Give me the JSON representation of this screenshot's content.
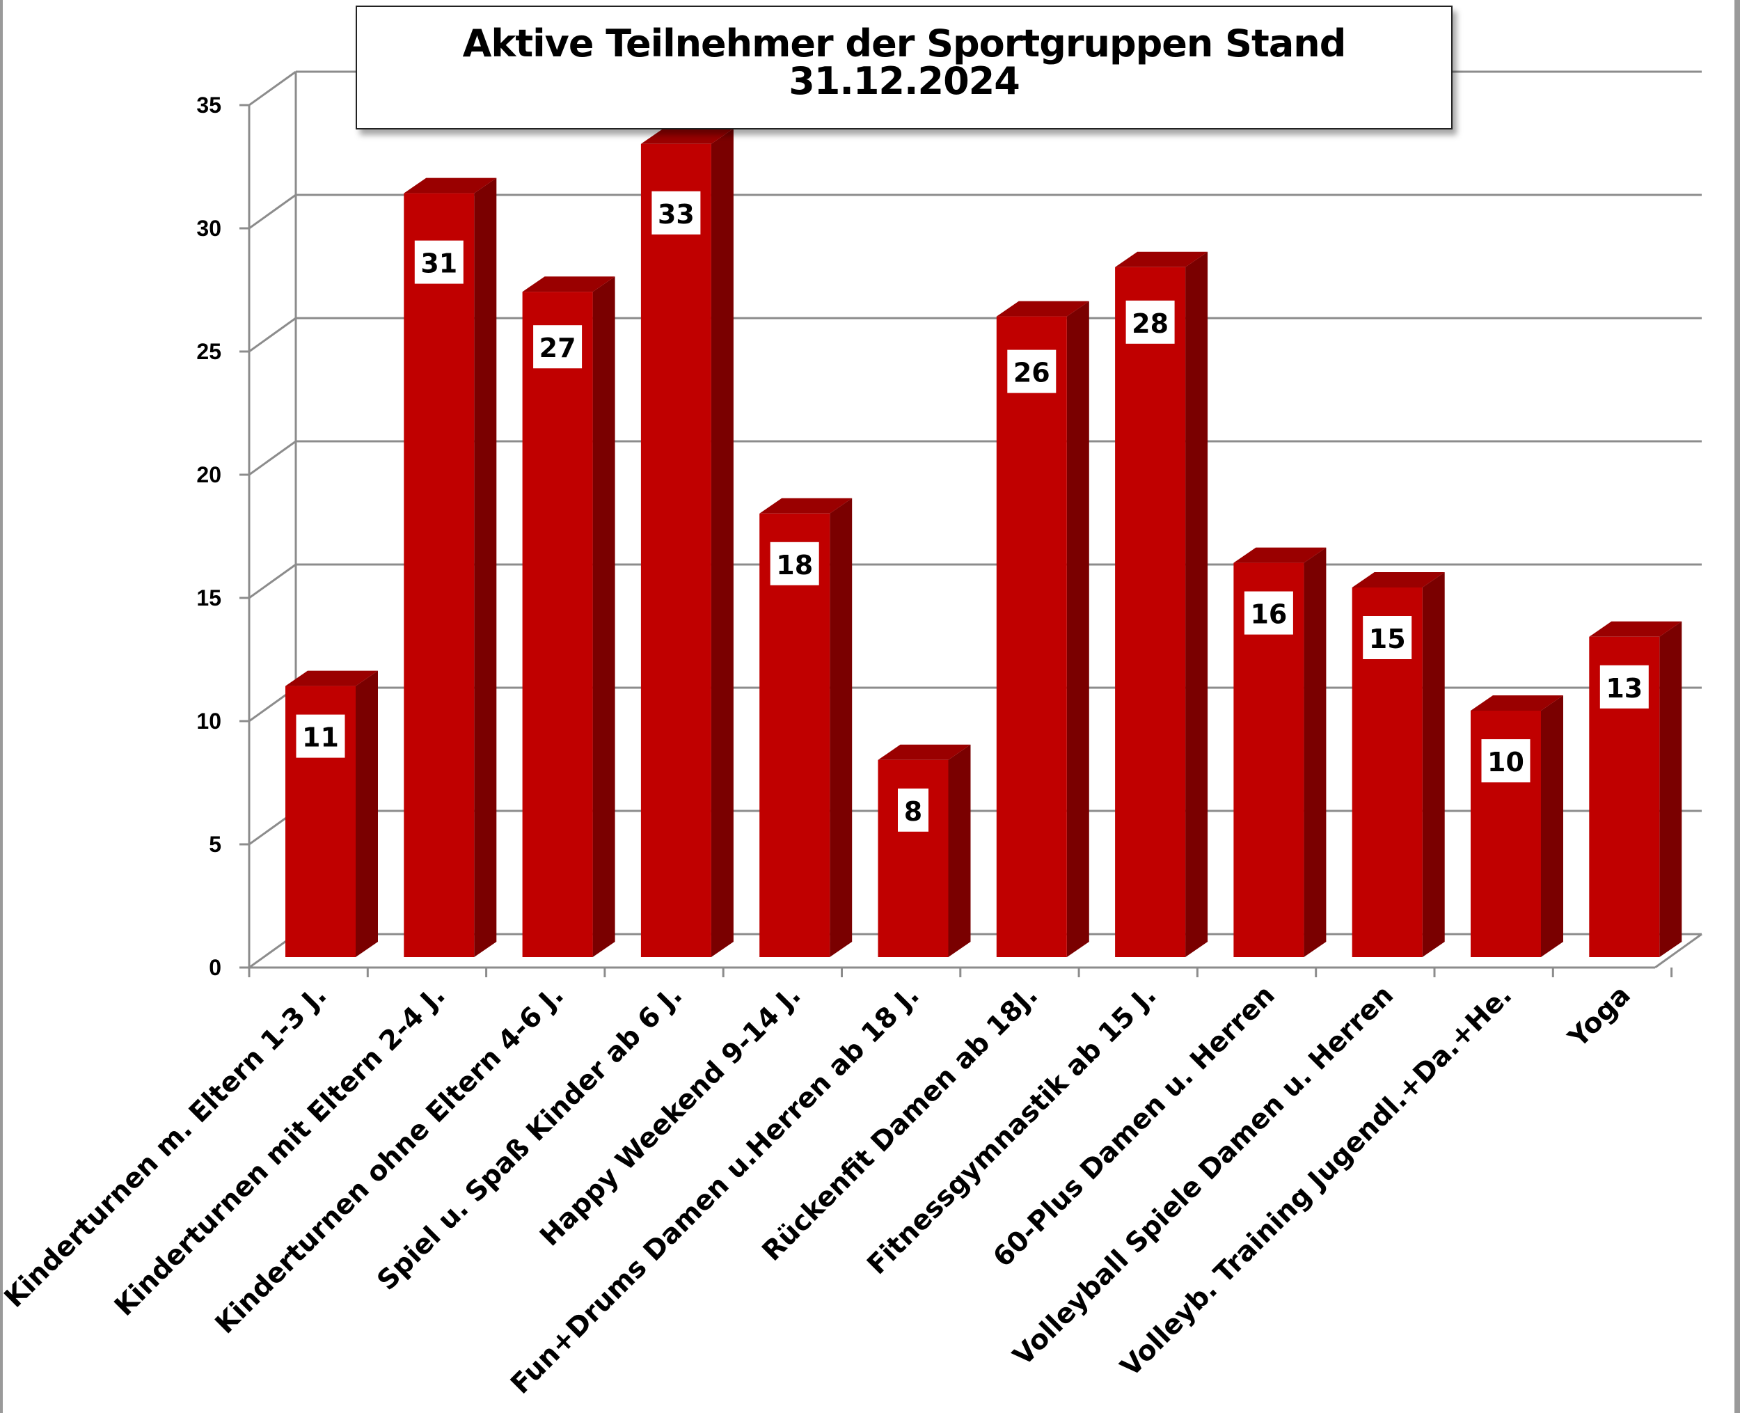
{
  "chart_data": {
    "type": "bar",
    "title": "Aktive Teilnehmer der Sportgruppen Stand 31.12.2024",
    "xlabel": "",
    "ylabel": "",
    "ylim": [
      0,
      35
    ],
    "yticks": [
      0,
      5,
      10,
      15,
      20,
      25,
      30,
      35
    ],
    "grid": true,
    "legend": "none",
    "style": "3d",
    "colors": {
      "bar_front": "#c00000",
      "bar_top": "#9a0000",
      "bar_side": "#7a0000",
      "grid": "#8c8c8c"
    },
    "categories": [
      "Kinderturnen m. Eltern  1-3 J.",
      "Kinderturnen   mit Eltern 2-4 J.",
      "Kinderturnen  ohne Eltern 4-6 J.",
      "Spiel u. Spaß Kinder ab 6 J.",
      "Happy Weekend 9-14 J.",
      "Fun+Drums Damen u.Herren ab 18 J.",
      "Rückenfit Damen ab 18J.",
      "Fitnessgymnastik  ab 15 J.",
      "60-Plus Damen u. Herren",
      "Volleyball Spiele Damen u. Herren",
      "Volleyb. Training Jugendl.+Da.+He.",
      "Yoga"
    ],
    "values": [
      11,
      31,
      27,
      33,
      18,
      8,
      26,
      28,
      16,
      15,
      10,
      13
    ]
  }
}
